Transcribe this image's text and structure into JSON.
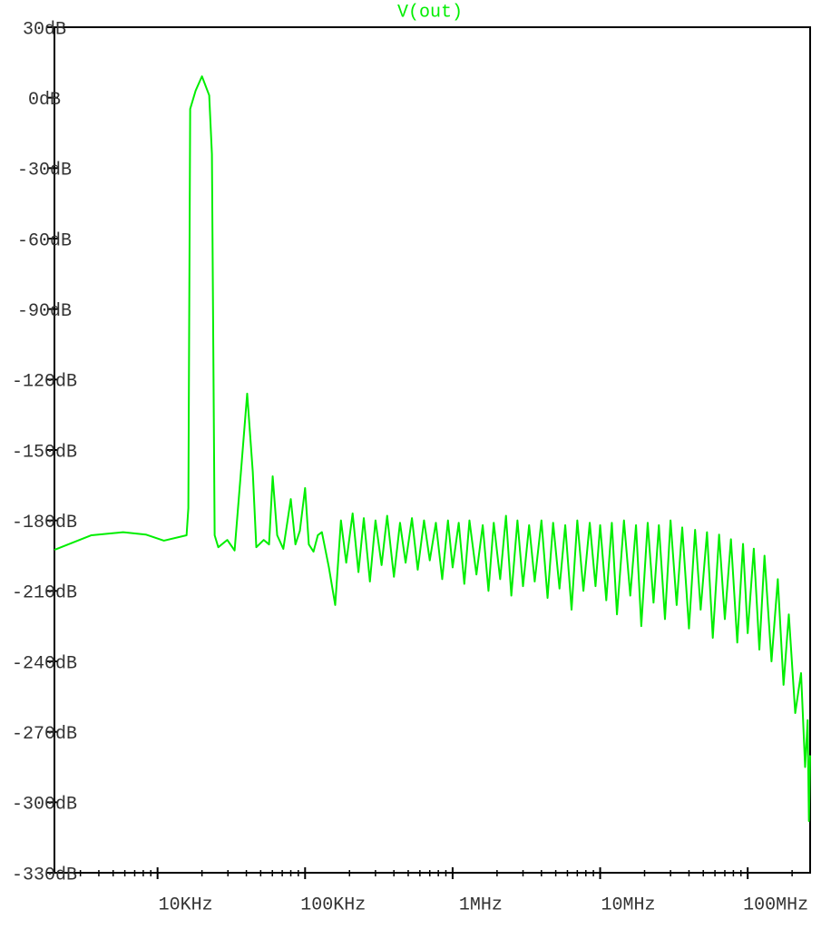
{
  "chart_data": {
    "type": "line",
    "log_x": true,
    "xlim": [
      2000,
      265000000
    ],
    "ylim": [
      -330,
      30
    ],
    "yticks": [
      {
        "value": 30,
        "label": "30dB"
      },
      {
        "value": 0,
        "label": "0dB"
      },
      {
        "value": -30,
        "label": "-30dB"
      },
      {
        "value": -60,
        "label": "-60dB"
      },
      {
        "value": -90,
        "label": "-90dB"
      },
      {
        "value": -120,
        "label": "-120dB"
      },
      {
        "value": -150,
        "label": "-150dB"
      },
      {
        "value": -180,
        "label": "-180dB"
      },
      {
        "value": -210,
        "label": "-210dB"
      },
      {
        "value": -240,
        "label": "-240dB"
      },
      {
        "value": -270,
        "label": "-270dB"
      },
      {
        "value": -300,
        "label": "-300dB"
      },
      {
        "value": -330,
        "label": "-330dB"
      }
    ],
    "xticks": [
      {
        "value": 10000,
        "label": "10KHz"
      },
      {
        "value": 100000,
        "label": "100KHz"
      },
      {
        "value": 1000000,
        "label": "1MHz"
      },
      {
        "value": 10000000,
        "label": "10MHz"
      },
      {
        "value": 100000000,
        "label": "100MHz"
      }
    ],
    "xminorticks": [
      3000,
      4000,
      5000,
      6000,
      7000,
      8000,
      9000,
      20000,
      30000,
      40000,
      50000,
      60000,
      70000,
      80000,
      90000,
      200000,
      300000,
      400000,
      500000,
      600000,
      700000,
      800000,
      900000,
      2000000,
      3000000,
      4000000,
      5000000,
      6000000,
      7000000,
      8000000,
      9000000,
      20000000,
      30000000,
      40000000,
      50000000,
      60000000,
      70000000,
      80000000,
      90000000,
      200000000
    ],
    "x": [
      2000,
      3565,
      5840,
      8320,
      11040,
      15730,
      16170,
      16640,
      18120,
      20000,
      22390,
      23360,
      24380,
      25800,
      29700,
      33280,
      36750,
      40500,
      44200,
      46700,
      52400,
      56980,
      60300,
      64700,
      71200,
      80000,
      86000,
      92200,
      100000,
      106000,
      114000,
      122000,
      130000,
      145000,
      160000,
      175000,
      190000,
      210000,
      230000,
      250000,
      275000,
      300000,
      330000,
      360000,
      400000,
      440000,
      480000,
      530000,
      580000,
      640000,
      700000,
      770000,
      850000,
      930000,
      1000000,
      1100000,
      1200000,
      1300000,
      1450000,
      1600000,
      1750000,
      1900000,
      2100000,
      2300000,
      2500000,
      2750000,
      3000000,
      3300000,
      3600000,
      4000000,
      4400000,
      4800000,
      5300000,
      5800000,
      6400000,
      7000000,
      7700000,
      8500000,
      9300000,
      10000000,
      11000000,
      12000000,
      13000000,
      14500000,
      16000000,
      17500000,
      19000000,
      21000000,
      23000000,
      25000000,
      27500000,
      30000000,
      33000000,
      36000000,
      40000000,
      44000000,
      48000000,
      53000000,
      58000000,
      64000000,
      70000000,
      77000000,
      85000000,
      93000000,
      100000000,
      110000000,
      120000000,
      130000000,
      145000000,
      160000000,
      175000000,
      190000000,
      210000000,
      230000000,
      245000000,
      255000000,
      260000000,
      265000000
    ],
    "series": [
      {
        "name": "V(out)",
        "color": "#00ee00",
        "values": [
          -192.5,
          -186.3,
          -185,
          -186,
          -188.6,
          -186.3,
          -174.7,
          -4.8,
          3,
          9.1,
          1,
          -24,
          -186.3,
          -191.4,
          -188.3,
          -192.8,
          -159.3,
          -126,
          -159.3,
          -191.4,
          -188.3,
          -190.2,
          -161.2,
          -186.3,
          -192.1,
          -170.9,
          -190.2,
          -184.4,
          -166.2,
          -190.2,
          -193.3,
          -186.3,
          -185,
          -200,
          -216,
          -180,
          -198,
          -177,
          -202,
          -179,
          -206,
          -180,
          -199,
          -178,
          -204,
          -181,
          -198,
          -179,
          -201,
          -180,
          -197,
          -181,
          -205,
          -180,
          -200,
          -181,
          -207,
          -180,
          -203,
          -182,
          -210,
          -181,
          -205,
          -178,
          -212,
          -180,
          -208,
          -182,
          -206,
          -180,
          -213,
          -181,
          -209,
          -182,
          -218,
          -180,
          -210,
          -181,
          -208,
          -182,
          -214,
          -181,
          -220,
          -180,
          -212,
          -182,
          -225,
          -181,
          -215,
          -182,
          -222,
          -180,
          -216,
          -183,
          -226,
          -184,
          -218,
          -185,
          -230,
          -186,
          -222,
          -188,
          -232,
          -190,
          -228,
          -192,
          -235,
          -195,
          -240,
          -205,
          -250,
          -220,
          -262,
          -245,
          -285,
          -265,
          -308,
          -280
        ]
      }
    ]
  }
}
